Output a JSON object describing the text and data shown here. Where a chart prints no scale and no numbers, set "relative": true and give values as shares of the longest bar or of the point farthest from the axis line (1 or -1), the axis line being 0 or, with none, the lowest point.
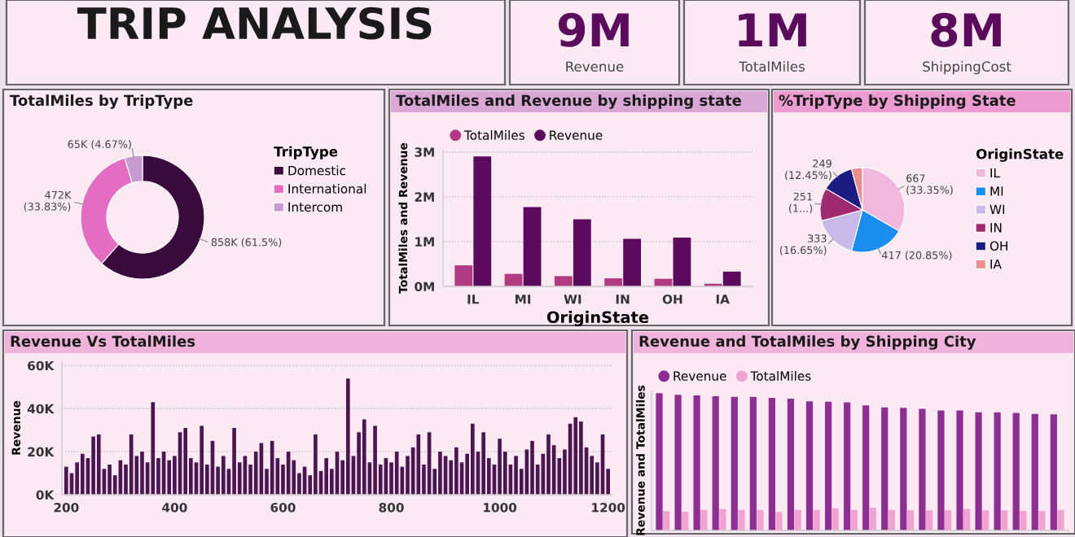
{
  "chart_data": [
    {
      "type": "other",
      "title": "TRIP ANALYSIS"
    },
    {
      "type": "other",
      "annotations": [
        "9M",
        "Revenue"
      ]
    },
    {
      "type": "other",
      "annotations": [
        "1M",
        "TotalMiles"
      ]
    },
    {
      "type": "other",
      "annotations": [
        "8M",
        "ShippingCost"
      ]
    },
    {
      "type": "donut",
      "title": "TotalMiles by TripType",
      "legend_title": "TripType",
      "legend": "right",
      "categories": [
        "Domestic",
        "International",
        "Intercom"
      ],
      "values": [
        858000,
        472000,
        65000
      ],
      "value_labels": [
        "858K (61.5%)",
        "472K\n(33.83%)",
        "65K (4.67%)"
      ],
      "colors": [
        "#3a0a3e",
        "#e46cc2",
        "#c79ad2"
      ]
    },
    {
      "type": "bar",
      "title": "TotalMiles and Revenue by shipping state",
      "xlabel": "OriginState",
      "ylabel": "TotalMiles and Revenue",
      "legend": "top left",
      "grid": "y",
      "categories": [
        "IL",
        "MI",
        "WI",
        "IN",
        "OH",
        "IA"
      ],
      "ylim": [
        0,
        3050000
      ],
      "yticks": [
        {
          "value": 0,
          "label": "0M"
        },
        {
          "value": 1000000,
          "label": "1M"
        },
        {
          "value": 2000000,
          "label": "2M"
        },
        {
          "value": 3000000,
          "label": "3M"
        }
      ],
      "series": [
        {
          "name": "TotalMiles",
          "color": "#b23a82",
          "values": [
            470000,
            280000,
            230000,
            180000,
            170000,
            60000
          ]
        },
        {
          "name": "Revenue",
          "color": "#5a0b5c",
          "values": [
            2900000,
            1770000,
            1500000,
            1060000,
            1090000,
            330000
          ]
        }
      ]
    },
    {
      "type": "pie",
      "title": "%TripType by Shipping State",
      "legend_title": "OriginState",
      "legend": "right",
      "categories": [
        "IL",
        "MI",
        "WI",
        "IN",
        "OH",
        "IA"
      ],
      "values": [
        667,
        417,
        333,
        251,
        249,
        83
      ],
      "value_labels": [
        "667\n(33.35%)",
        "417 (20.85%)",
        "333\n(16.65%)",
        "251\n(1...)",
        "249\n(12.45%)",
        null
      ],
      "colors": [
        "#f2b8dc",
        "#1b8cf0",
        "#c9b9e8",
        "#a1296f",
        "#1b1b82",
        "#e8908a"
      ]
    },
    {
      "type": "bar",
      "title": "Revenue Vs TotalMiles",
      "ylabel": "Revenue",
      "grid": "y",
      "xlim": [
        192,
        1208
      ],
      "xticks": [
        200,
        400,
        600,
        800,
        1000,
        1200
      ],
      "ylim": [
        0,
        62000
      ],
      "yticks": [
        {
          "value": 0,
          "label": "0K"
        },
        {
          "value": 20000,
          "label": "20K"
        },
        {
          "value": 40000,
          "label": "40K"
        },
        {
          "value": 60000,
          "label": "60K"
        }
      ],
      "x": [
        200,
        210,
        220,
        230,
        240,
        250,
        260,
        270,
        280,
        290,
        300,
        310,
        320,
        330,
        340,
        350,
        360,
        370,
        380,
        390,
        400,
        410,
        420,
        430,
        440,
        450,
        460,
        470,
        480,
        490,
        500,
        510,
        520,
        530,
        540,
        550,
        560,
        570,
        580,
        590,
        600,
        610,
        620,
        630,
        640,
        650,
        660,
        670,
        680,
        690,
        700,
        710,
        720,
        730,
        740,
        750,
        760,
        770,
        780,
        790,
        800,
        810,
        820,
        830,
        840,
        850,
        860,
        870,
        880,
        890,
        900,
        910,
        920,
        930,
        940,
        950,
        960,
        970,
        980,
        990,
        1000,
        1010,
        1020,
        1030,
        1040,
        1050,
        1060,
        1070,
        1080,
        1090,
        1100,
        1110,
        1120,
        1130,
        1140,
        1150,
        1160,
        1170,
        1180,
        1190,
        1200
      ],
      "series": [
        {
          "color": "#4b1650",
          "values": [
            13000,
            10000,
            15000,
            19000,
            17000,
            27000,
            28000,
            12000,
            14000,
            9000,
            16000,
            14000,
            28000,
            18000,
            20000,
            15000,
            43000,
            17000,
            20000,
            16000,
            18000,
            29000,
            31000,
            17000,
            15000,
            32000,
            14000,
            25000,
            13000,
            18000,
            12000,
            31000,
            15000,
            18000,
            14000,
            20000,
            24000,
            12000,
            25000,
            17000,
            14000,
            20000,
            16000,
            10000,
            13000,
            9000,
            28000,
            11000,
            17000,
            12000,
            20000,
            16000,
            54000,
            18000,
            29000,
            35000,
            15000,
            32000,
            14000,
            17000,
            15000,
            20000,
            13000,
            18000,
            22000,
            28000,
            14000,
            29000,
            12000,
            20000,
            18000,
            16000,
            22000,
            15000,
            19000,
            33000,
            20000,
            29000,
            17000,
            14000,
            26000,
            20000,
            14000,
            18000,
            12000,
            21000,
            25000,
            14000,
            19000,
            28000,
            23000,
            17000,
            21000,
            33000,
            36000,
            34000,
            22000,
            18000,
            15000,
            28000,
            12000
          ]
        }
      ]
    },
    {
      "type": "bar",
      "title": "Revenue and TotalMiles by Shipping City",
      "ylabel": "Revenue and TotalMiles",
      "legend": "top left",
      "relative": true,
      "categories": [
        null,
        null,
        null,
        null,
        null,
        null,
        null,
        null,
        null,
        null,
        null,
        null,
        null,
        null,
        null,
        null,
        null,
        null,
        null,
        null,
        null,
        null
      ],
      "series": [
        {
          "name": "Revenue",
          "color": "#8e2d92",
          "values": [
            1.0,
            0.989,
            0.985,
            0.978,
            0.974,
            0.974,
            0.967,
            0.96,
            0.941,
            0.938,
            0.934,
            0.912,
            0.897,
            0.894,
            0.886,
            0.875,
            0.875,
            0.861,
            0.861,
            0.857,
            0.85,
            0.846
          ]
        },
        {
          "name": "TotalMiles",
          "color": "#f0a2d2",
          "values": [
            0.14,
            0.136,
            0.15,
            0.157,
            0.15,
            0.15,
            0.136,
            0.15,
            0.15,
            0.161,
            0.15,
            0.165,
            0.15,
            0.147,
            0.147,
            0.147,
            0.157,
            0.147,
            0.147,
            0.143,
            0.143,
            0.15
          ]
        }
      ]
    }
  ]
}
